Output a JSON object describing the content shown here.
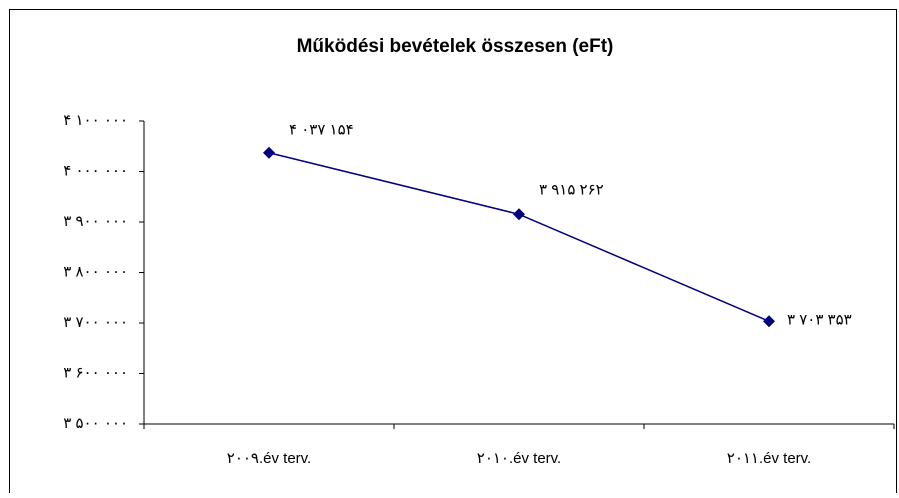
{
  "chart_data": {
    "type": "line",
    "title": "Működési bevételek összesen (eFt)",
    "categories": [
      "۲۰۰۹.év terv.",
      "۲۰۱۰.év terv.",
      "۲۰۱۱.év terv."
    ],
    "series": [
      {
        "name": "Működési bevételek összesen",
        "color": "#000080",
        "values": [
          4037154,
          3915262,
          3703353
        ],
        "value_labels": [
          "۴ ۰۳۷ ۱۵۴",
          "۳ ۹۱۵ ۲۶۲",
          "۳ ۷۰۳ ۳۵۳"
        ]
      }
    ],
    "ylim": [
      3500000,
      4100000
    ],
    "yticks": [
      {
        "value": 3500000,
        "label": "۳ ۵۰۰ ۰۰۰"
      },
      {
        "value": 3600000,
        "label": "۳ ۶۰۰ ۰۰۰"
      },
      {
        "value": 3700000,
        "label": "۳ ۷۰۰ ۰۰۰"
      },
      {
        "value": 3800000,
        "label": "۳ ۸۰۰ ۰۰۰"
      },
      {
        "value": 3900000,
        "label": "۳ ۹۰۰ ۰۰۰"
      },
      {
        "value": 4000000,
        "label": "۴ ۰۰۰ ۰۰۰"
      },
      {
        "value": 4100000,
        "label": "۴ ۱۰۰ ۰۰۰"
      }
    ],
    "grid": false
  }
}
